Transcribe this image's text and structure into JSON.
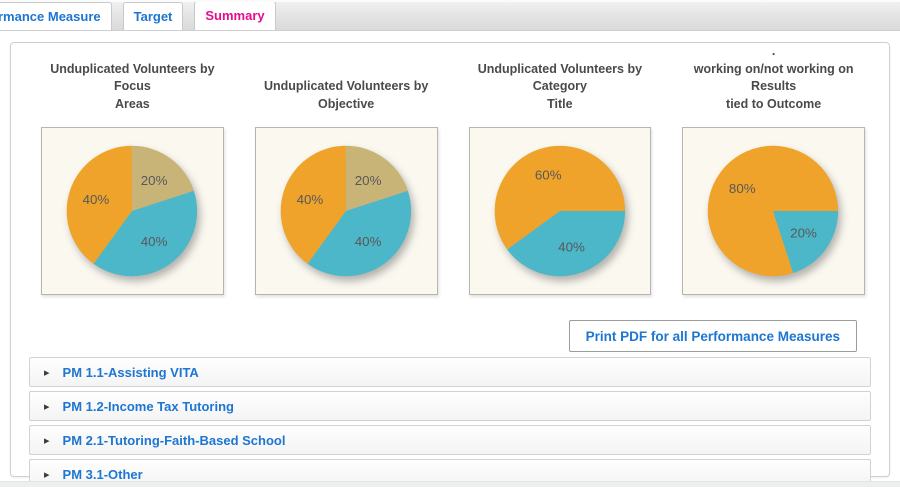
{
  "tabs": [
    {
      "label": "rmance Measure",
      "active": false
    },
    {
      "label": "Target",
      "active": false
    },
    {
      "label": "Summary",
      "active": true
    }
  ],
  "print_button": {
    "label": "Print PDF for all Performance Measures"
  },
  "accordion": {
    "items": [
      {
        "label": "PM 1.1-Assisting VITA"
      },
      {
        "label": "PM 1.2-Income Tax Tutoring"
      },
      {
        "label": "PM 2.1-Tutoring-Faith-Based School"
      },
      {
        "label": "PM 3.1-Other"
      }
    ]
  },
  "colors": {
    "pie_orange": "#EFA32A",
    "pie_tan": "#C9B478",
    "pie_teal": "#4BB7C8",
    "chart_bg": "#FAF8EF",
    "tab_link_blue": "#1D76D2",
    "tab_active_pink": "#E50C8E"
  },
  "chart_data": [
    {
      "type": "pie",
      "title": "Unduplicated Volunteers by Focus\nAreas",
      "start_angle_deg": 0,
      "legend": "none",
      "slices": [
        {
          "label": "20%",
          "pct": 20,
          "color": "#C9B478"
        },
        {
          "label": "40%",
          "pct": 40,
          "color": "#4BB7C8"
        },
        {
          "label": "40%",
          "pct": 40,
          "color": "#EFA32A"
        }
      ]
    },
    {
      "type": "pie",
      "title": "Unduplicated Volunteers by\nObjective",
      "start_angle_deg": 0,
      "legend": "none",
      "slices": [
        {
          "label": "20%",
          "pct": 20,
          "color": "#C9B478"
        },
        {
          "label": "40%",
          "pct": 40,
          "color": "#4BB7C8"
        },
        {
          "label": "40%",
          "pct": 40,
          "color": "#EFA32A"
        }
      ]
    },
    {
      "type": "pie",
      "title": "Unduplicated Volunteers by Category\nTitle",
      "start_angle_deg": 90,
      "legend": "none",
      "slices": [
        {
          "label": "40%",
          "pct": 40,
          "color": "#4BB7C8"
        },
        {
          "label": "60%",
          "pct": 60,
          "color": "#EFA32A"
        }
      ]
    },
    {
      "type": "pie",
      "title": ".\nworking on/not working on Results\ntied to Outcome",
      "start_angle_deg": 90,
      "legend": "none",
      "slices": [
        {
          "label": "20%",
          "pct": 20,
          "color": "#4BB7C8"
        },
        {
          "label": "80%",
          "pct": 80,
          "color": "#EFA32A"
        }
      ]
    }
  ]
}
